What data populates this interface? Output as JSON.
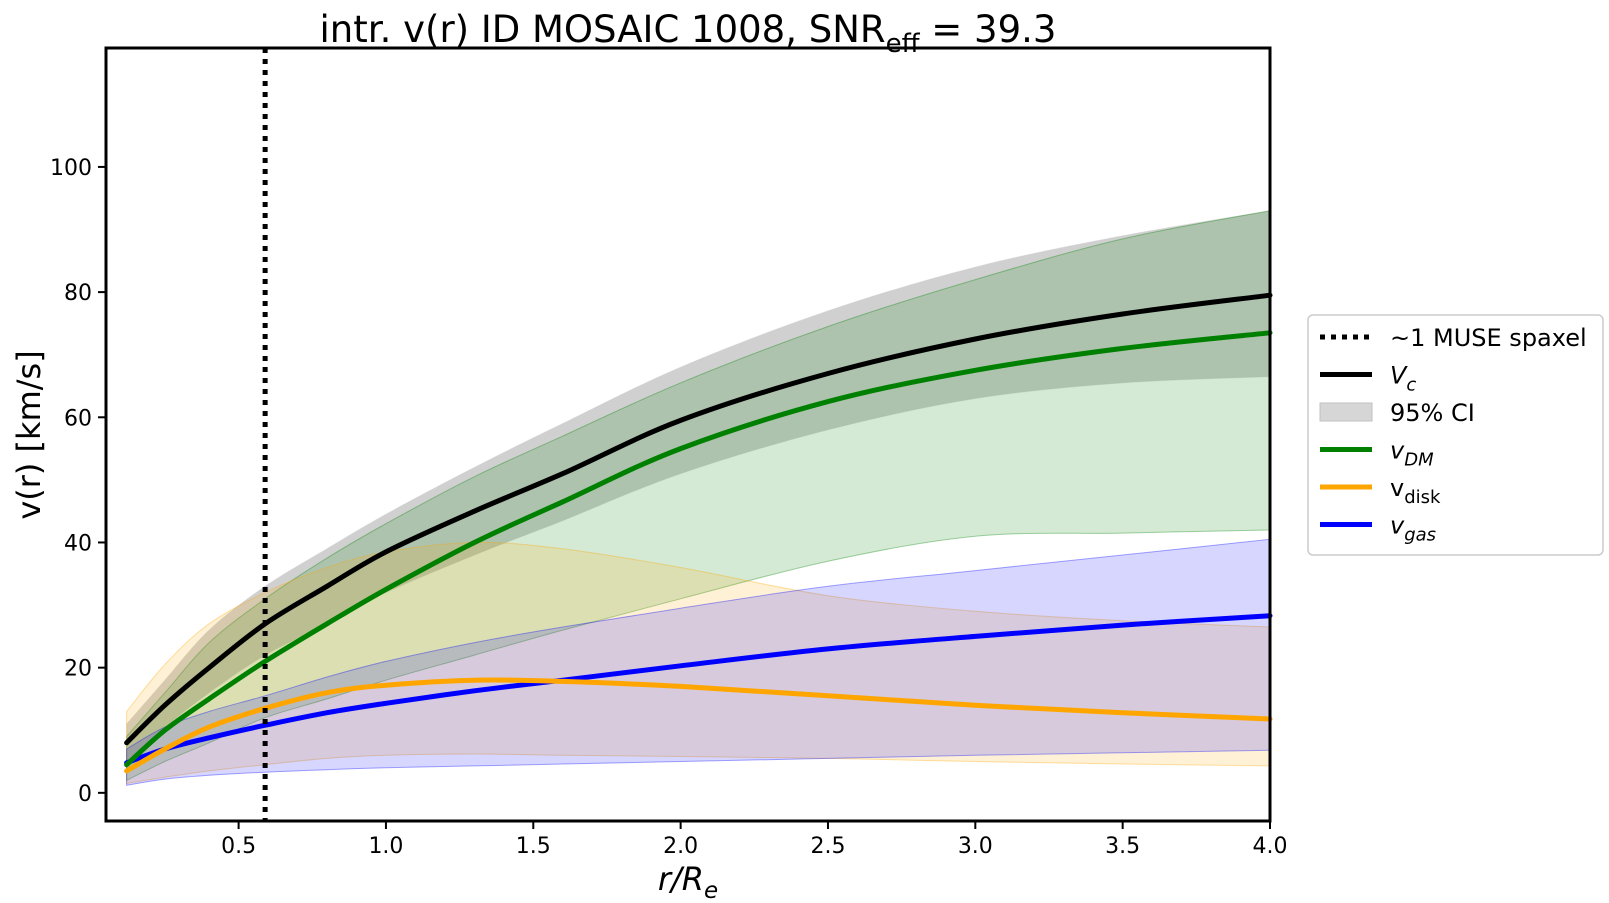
{
  "chart_data": {
    "type": "line",
    "title": {
      "main": "intr. v(r) ID MOSAIC 1008, SNR",
      "sub": "eff",
      "rest": " = 39.3"
    },
    "xlabel": {
      "main": "r/R",
      "sub": "e"
    },
    "ylabel": "v(r) [km/s]",
    "xlim": [
      0.05,
      4.0
    ],
    "ylim": [
      -4.5,
      119
    ],
    "xticks": [
      0.5,
      1.0,
      1.5,
      2.0,
      2.5,
      3.0,
      3.5,
      4.0
    ],
    "xtick_labels": [
      "0.5",
      "1.0",
      "1.5",
      "2.0",
      "2.5",
      "3.0",
      "3.5",
      "4.0"
    ],
    "yticks": [
      0,
      20,
      40,
      60,
      80,
      100
    ],
    "ytick_labels": [
      "0",
      "20",
      "40",
      "60",
      "80",
      "100"
    ],
    "grid": false,
    "legend_position": "outside-right",
    "vline": {
      "x": 0.59,
      "label": "~1 MUSE spaxel",
      "color": "#000000",
      "style": "dotted"
    },
    "x": [
      0.12,
      0.25,
      0.4,
      0.59,
      0.8,
      1.0,
      1.3,
      1.6,
      2.0,
      2.5,
      3.0,
      3.5,
      4.0
    ],
    "series": [
      {
        "name": "V",
        "sub": "c",
        "italic": true,
        "color": "#000000",
        "values": [
          8,
          14,
          20,
          27,
          33,
          38.5,
          45,
          51,
          59.5,
          67,
          72.5,
          76.5,
          79.5
        ],
        "lower": [
          5,
          10.5,
          16,
          22,
          27,
          32,
          38,
          43.5,
          51,
          58,
          63,
          65.5,
          66.5
        ],
        "upper": [
          11,
          18,
          26,
          33,
          39,
          44.5,
          52,
          59,
          68,
          77,
          84,
          89,
          93
        ]
      },
      {
        "name": "v",
        "sub": "DM",
        "italic": true,
        "color": "#008000",
        "values": [
          4.5,
          10,
          15,
          21,
          27,
          32.5,
          40,
          46.5,
          55,
          62.5,
          67.5,
          71,
          73.5
        ],
        "lower": [
          2,
          5,
          8,
          12,
          15,
          18,
          22,
          26,
          31,
          37,
          41,
          41.5,
          42
        ],
        "upper": [
          9,
          16,
          24,
          31,
          37.5,
          43,
          50.5,
          57,
          65.5,
          74.5,
          82,
          88.5,
          93
        ]
      },
      {
        "name": "v",
        "sub": "disk",
        "italic": false,
        "color": "#FFA500",
        "values": [
          3.5,
          7,
          10.5,
          13.5,
          16,
          17.2,
          18,
          17.8,
          17,
          15.5,
          14,
          12.8,
          11.8
        ],
        "lower": [
          1.5,
          2.5,
          3.5,
          4.5,
          5.5,
          6,
          6.2,
          6,
          5.8,
          5.5,
          5,
          4.6,
          4.3
        ],
        "upper": [
          13,
          20.5,
          27,
          32,
          36,
          38.5,
          40,
          39,
          36,
          31.5,
          29,
          27.5,
          26.5
        ]
      },
      {
        "name": "v",
        "sub": "gas",
        "italic": true,
        "color": "#0000FF",
        "values": [
          4.8,
          7,
          8.8,
          10.8,
          12.8,
          14.3,
          16.3,
          18,
          20.3,
          23,
          25,
          26.8,
          28.3
        ],
        "lower": [
          1.2,
          2.2,
          2.8,
          3.3,
          3.7,
          4,
          4.3,
          4.6,
          5,
          5.5,
          6,
          6.4,
          6.8
        ],
        "upper": [
          7,
          10.5,
          13,
          15.5,
          18.5,
          21,
          24,
          26.5,
          29.5,
          33,
          35.5,
          38,
          40.5
        ]
      }
    ],
    "ci_legend": {
      "label": "95% CI",
      "color": "#d6d6d6"
    }
  }
}
